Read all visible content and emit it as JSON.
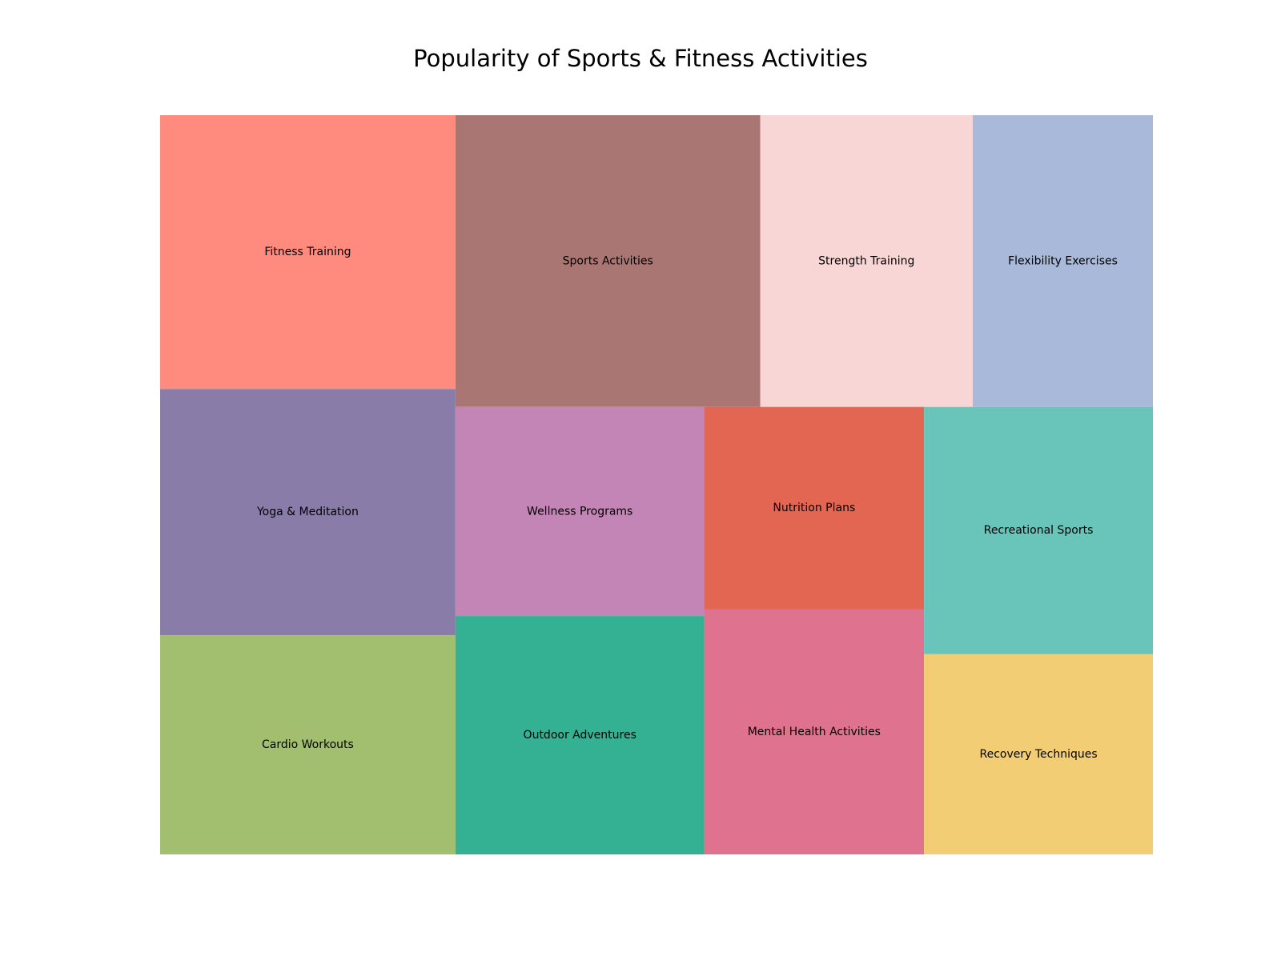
{
  "chart_data": {
    "type": "treemap",
    "title": "Popularity of Sports & Fitness Activities",
    "values_note": "",
    "items": [
      {
        "label": "Fitness Training",
        "value": 30,
        "color": "#ff8b7e"
      },
      {
        "label": "Yoga & Meditation",
        "value": 27,
        "color": "#897ca8"
      },
      {
        "label": "Cardio Workouts",
        "value": 24,
        "color": "#a1bf6e"
      },
      {
        "label": "Sports Activities",
        "value": 33,
        "color": "#aa7673"
      },
      {
        "label": "Strength Training",
        "value": 23,
        "color": "#f8d6d5"
      },
      {
        "label": "Flexibility Exercises",
        "value": 19.5,
        "color": "#a9b9d9"
      },
      {
        "label": "Wellness Programs",
        "value": 19.3,
        "color": "#c384b6"
      },
      {
        "label": "Outdoor Adventures",
        "value": 22,
        "color": "#34b092"
      },
      {
        "label": "Nutrition Plans",
        "value": 16.5,
        "color": "#e36652"
      },
      {
        "label": "Mental Health Activities",
        "value": 20,
        "color": "#df728e"
      },
      {
        "label": "Recreational Sports",
        "value": 21,
        "color": "#69c5ba"
      },
      {
        "label": "Recovery Techniques",
        "value": 17,
        "color": "#f2cd74"
      }
    ]
  }
}
